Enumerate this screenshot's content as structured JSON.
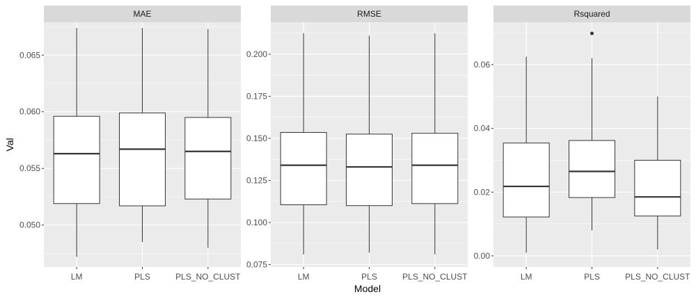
{
  "chart_data": {
    "type": "boxplot",
    "xlabel": "Model",
    "ylabel": "Val",
    "categories": [
      "LM",
      "PLS",
      "PLS_NO_CLUST"
    ],
    "facet_scales": "free_y",
    "grid": true,
    "colors": {
      "panel_bg": "#ebebeb",
      "strip_bg": "#d9d9d9",
      "grid": "#ffffff",
      "box_fill": "#ffffff",
      "box_line": "#333333",
      "text": "#4d4d4d"
    },
    "facets": [
      {
        "title": "MAE",
        "ylim": [
          0.0463,
          0.0679
        ],
        "yticks": [
          0.05,
          0.055,
          0.06,
          0.065
        ],
        "ytick_labels": [
          "0.050",
          "0.055",
          "0.060",
          "0.065"
        ],
        "boxes": [
          {
            "category": "LM",
            "lower_whisker": 0.0472,
            "q1": 0.0519,
            "median": 0.0563,
            "q3": 0.0596,
            "upper_whisker": 0.0674,
            "outliers": []
          },
          {
            "category": "PLS",
            "lower_whisker": 0.0485,
            "q1": 0.0517,
            "median": 0.0567,
            "q3": 0.0599,
            "upper_whisker": 0.0674,
            "outliers": []
          },
          {
            "category": "PLS_NO_CLUST",
            "lower_whisker": 0.048,
            "q1": 0.0523,
            "median": 0.0565,
            "q3": 0.0595,
            "upper_whisker": 0.0673,
            "outliers": []
          }
        ]
      },
      {
        "title": "RMSE",
        "ylim": [
          0.0735,
          0.219
        ],
        "yticks": [
          0.075,
          0.1,
          0.125,
          0.15,
          0.175,
          0.2
        ],
        "ytick_labels": [
          "0.075",
          "0.100",
          "0.125",
          "0.150",
          "0.175",
          "0.200"
        ],
        "boxes": [
          {
            "category": "LM",
            "lower_whisker": 0.081,
            "q1": 0.1105,
            "median": 0.134,
            "q3": 0.1535,
            "upper_whisker": 0.2125,
            "outliers": []
          },
          {
            "category": "PLS",
            "lower_whisker": 0.082,
            "q1": 0.11,
            "median": 0.133,
            "q3": 0.1525,
            "upper_whisker": 0.211,
            "outliers": []
          },
          {
            "category": "PLS_NO_CLUST",
            "lower_whisker": 0.081,
            "q1": 0.1112,
            "median": 0.134,
            "q3": 0.153,
            "upper_whisker": 0.2125,
            "outliers": []
          }
        ]
      },
      {
        "title": "Rsquared",
        "ylim": [
          -0.0035,
          0.0733
        ],
        "yticks": [
          0.0,
          0.02,
          0.04,
          0.06
        ],
        "ytick_labels": [
          "0.00",
          "0.02",
          "0.04",
          "0.06"
        ],
        "boxes": [
          {
            "category": "LM",
            "lower_whisker": 0.001,
            "q1": 0.0122,
            "median": 0.0218,
            "q3": 0.0354,
            "upper_whisker": 0.0625,
            "outliers": []
          },
          {
            "category": "PLS",
            "lower_whisker": 0.008,
            "q1": 0.0183,
            "median": 0.0265,
            "q3": 0.0362,
            "upper_whisker": 0.062,
            "outliers": [
              0.0698
            ]
          },
          {
            "category": "PLS_NO_CLUST",
            "lower_whisker": 0.002,
            "q1": 0.0125,
            "median": 0.0185,
            "q3": 0.03,
            "upper_whisker": 0.05,
            "outliers": []
          }
        ]
      }
    ]
  }
}
